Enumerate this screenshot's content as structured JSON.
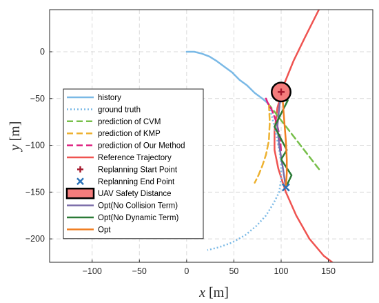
{
  "chart_data": {
    "type": "line",
    "title": "",
    "xlabel_var": "x",
    "xlabel_unit": "[m]",
    "ylabel_var": "y",
    "ylabel_unit": "[m]",
    "xlim": [
      -145,
      197
    ],
    "ylim": [
      -225,
      45
    ],
    "xticks": [
      -100,
      -50,
      0,
      50,
      100,
      150
    ],
    "yticks": [
      0,
      -50,
      -100,
      -150,
      -200
    ],
    "grid": true,
    "legend_position": "left",
    "series": [
      {
        "name": "history",
        "color": "#7ab9e6",
        "style": "solid",
        "x": [
          0,
          8,
          16,
          24,
          32,
          40,
          48,
          56,
          64,
          72,
          80,
          86
        ],
        "y": [
          0,
          0,
          -2,
          -5,
          -10,
          -16,
          -22,
          -30,
          -36,
          -44,
          -50,
          -55
        ]
      },
      {
        "name": "ground truth",
        "color": "#7ab9e6",
        "style": "dotted",
        "x": [
          86,
          90,
          94,
          98,
          100,
          100,
          98,
          92,
          84,
          74,
          62,
          48,
          34,
          22
        ],
        "y": [
          -55,
          -68,
          -85,
          -105,
          -120,
          -135,
          -150,
          -162,
          -175,
          -186,
          -196,
          -204,
          -209,
          -212
        ]
      },
      {
        "name": "prediction of CVM",
        "color": "#77bf4a",
        "style": "dashed",
        "x": [
          86,
          142
        ],
        "y": [
          -55,
          -128
        ]
      },
      {
        "name": "prediction of KMP",
        "color": "#edb130",
        "style": "dashed",
        "x": [
          87,
          88,
          87,
          84,
          80,
          76,
          72
        ],
        "y": [
          -56,
          -75,
          -95,
          -110,
          -122,
          -132,
          -140
        ]
      },
      {
        "name": "prediction of Our Method",
        "color": "#de1f7f",
        "style": "dashed",
        "x": [
          84,
          86,
          90,
          95,
          99,
          100
        ],
        "y": [
          -50,
          -55,
          -62,
          -75,
          -92,
          -108
        ]
      },
      {
        "name": "Reference Trajectory",
        "color": "#ef5350",
        "style": "solid",
        "x": [
          140,
          125,
          113,
          103,
          96,
          93,
          93,
          97,
          105,
          116,
          130,
          145,
          158
        ],
        "y": [
          45,
          15,
          -10,
          -35,
          -60,
          -85,
          -105,
          -125,
          -150,
          -175,
          -200,
          -218,
          -228
        ]
      },
      {
        "name": "Opt(No Collision Term)",
        "color": "#7a6ba8",
        "style": "solid",
        "x": [
          100,
          98,
          96,
          98,
          102,
          105
        ],
        "y": [
          -43,
          -60,
          -80,
          -100,
          -125,
          -145
        ]
      },
      {
        "name": "Opt(No Dynamic Term)",
        "color": "#2a7a36",
        "style": "solid",
        "x": [
          102,
          107,
          93,
          106,
          100,
          111,
          105
        ],
        "y": [
          -43,
          -52,
          -80,
          -105,
          -115,
          -132,
          -145
        ]
      },
      {
        "name": "Opt",
        "color": "#f07f22",
        "style": "solid",
        "x": [
          101,
          103,
          105,
          106,
          106,
          105
        ],
        "y": [
          -43,
          -70,
          -95,
          -115,
          -130,
          -145
        ]
      }
    ],
    "markers": [
      {
        "name": "Replanning Start Point",
        "color": "#a51a2e",
        "symbol": "+",
        "x": 100,
        "y": -43
      },
      {
        "name": "Replanning End Point",
        "color": "#2b72b8",
        "symbol": "x",
        "x": 105,
        "y": -145
      }
    ],
    "safety_circle": {
      "name": "UAV Safety Distance",
      "center": [
        100,
        -43
      ],
      "radius": 10,
      "fill": "#f47c7c",
      "edge": "#000000"
    },
    "legend_order": [
      "history",
      "ground truth",
      "prediction of CVM",
      "prediction of KMP",
      "prediction of Our Method",
      "Reference Trajectory",
      "Replanning Start Point",
      "Replanning End Point",
      "UAV Safety Distance",
      "Opt(No Collision Term)",
      "Opt(No Dynamic Term)",
      "Opt"
    ]
  }
}
